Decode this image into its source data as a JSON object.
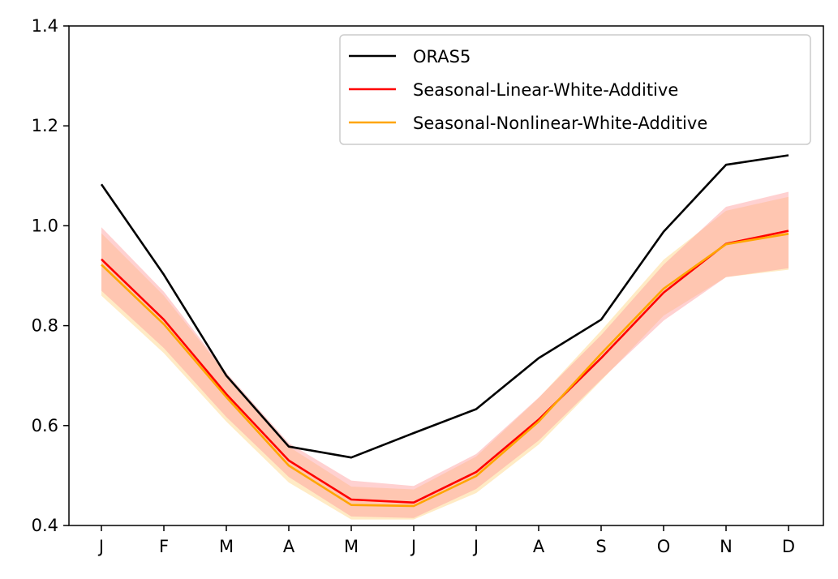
{
  "chart_data": {
    "type": "line",
    "title": "",
    "xlabel": "",
    "ylabel": "",
    "categories": [
      "J",
      "F",
      "M",
      "A",
      "M",
      "J",
      "J",
      "A",
      "S",
      "O",
      "N",
      "D"
    ],
    "ylim": [
      0.4,
      1.4
    ],
    "yticks": [
      0.4,
      0.6,
      0.8,
      1.0,
      1.2,
      1.4
    ],
    "ytick_labels": [
      "0.4",
      "0.6",
      "0.8",
      "1.0",
      "1.2",
      "1.4"
    ],
    "grid": false,
    "legend_position": "top-right",
    "series": [
      {
        "name": "ORAS5",
        "color": "#000000",
        "values": [
          1.083,
          0.902,
          0.7,
          0.558,
          0.536,
          0.585,
          0.633,
          0.735,
          0.812,
          0.988,
          1.122,
          1.141
        ]
      },
      {
        "name": "Seasonal-Linear-White-Additive",
        "color": "#ff0000",
        "band_color": "#ff9999",
        "values": [
          0.933,
          0.812,
          0.663,
          0.53,
          0.452,
          0.446,
          0.507,
          0.612,
          0.735,
          0.866,
          0.964,
          0.99
        ],
        "lower": [
          0.87,
          0.755,
          0.617,
          0.497,
          0.418,
          0.415,
          0.473,
          0.57,
          0.692,
          0.81,
          0.897,
          0.915
        ],
        "upper": [
          0.997,
          0.868,
          0.706,
          0.565,
          0.49,
          0.479,
          0.543,
          0.656,
          0.781,
          0.922,
          1.038,
          1.068
        ]
      },
      {
        "name": "Seasonal-Nonlinear-White-Additive",
        "color": "#ffa500",
        "band_color": "#ffd27f",
        "values": [
          0.922,
          0.803,
          0.657,
          0.52,
          0.441,
          0.439,
          0.499,
          0.608,
          0.744,
          0.874,
          0.963,
          0.984
        ],
        "lower": [
          0.86,
          0.745,
          0.608,
          0.486,
          0.412,
          0.412,
          0.465,
          0.562,
          0.69,
          0.82,
          0.897,
          0.912
        ],
        "upper": [
          0.985,
          0.86,
          0.703,
          0.558,
          0.478,
          0.472,
          0.538,
          0.655,
          0.79,
          0.932,
          1.03,
          1.058
        ]
      }
    ]
  }
}
